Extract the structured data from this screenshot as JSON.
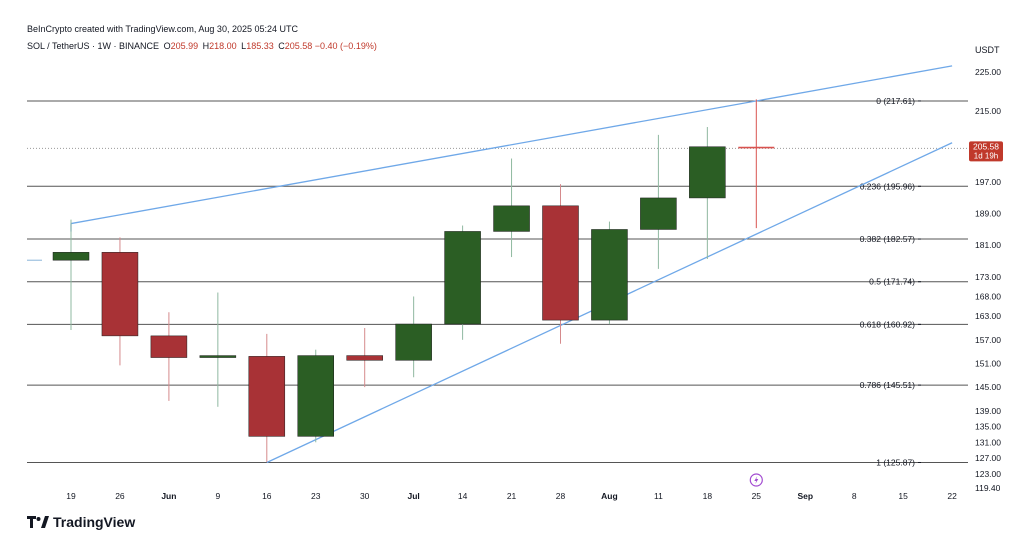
{
  "credit": "BeInCrypto created with TradingView.com, Aug 30, 2025 05:24 UTC",
  "legend": {
    "symbol": "SOL / TetherUS · 1W · BINANCE",
    "open_label": "O",
    "open": "205.99",
    "high_label": "H",
    "high": "218.00",
    "low_label": "L",
    "low": "185.33",
    "close_label": "C",
    "close": "205.58",
    "change": "−0.40 (−0.19%)"
  },
  "unit": "USDT",
  "brand": "TradingView",
  "last_price": {
    "value": "205.58",
    "countdown": "1d 19h"
  },
  "event_icon": "lightning-icon",
  "colors": {
    "up": "#2b5e24",
    "down": "#a83236",
    "trend": "#6fa8e8",
    "fib": "#555555",
    "price_tag": "#c0392b"
  },
  "chart_data": {
    "type": "candlestick",
    "x_labels": [
      "19",
      "26",
      "Jun",
      "9",
      "16",
      "23",
      "30",
      "Jul",
      "14",
      "21",
      "28",
      "Aug",
      "11",
      "18",
      "25",
      "Sep",
      "8",
      "15",
      "22"
    ],
    "y_ticks": [
      225.0,
      215.0,
      205.58,
      197.0,
      189.0,
      181.0,
      173.0,
      168.0,
      163.0,
      157.0,
      151.0,
      145.0,
      139.0,
      135.0,
      131.0,
      127.0,
      123.0,
      119.4
    ],
    "y_tick_labels": [
      "225.00",
      "215.00",
      "",
      "197.00",
      "189.00",
      "181.00",
      "173.00",
      "168.00",
      "163.00",
      "157.00",
      "151.00",
      "145.00",
      "139.00",
      "135.00",
      "131.00",
      "127.00",
      "123.00",
      "119.40"
    ],
    "candles": [
      {
        "x": "19",
        "o": 177.2,
        "h": 187.5,
        "l": 159.5,
        "c": 179.2
      },
      {
        "x": "26",
        "o": 179.2,
        "h": 183.0,
        "l": 150.5,
        "c": 158.0
      },
      {
        "x": "Jun",
        "o": 158.0,
        "h": 164.0,
        "l": 141.5,
        "c": 152.5
      },
      {
        "x": "9",
        "o": 152.5,
        "h": 169.0,
        "l": 140.0,
        "c": 153.0
      },
      {
        "x": "16",
        "o": 152.8,
        "h": 158.5,
        "l": 126.0,
        "c": 132.5
      },
      {
        "x": "23",
        "o": 132.5,
        "h": 154.5,
        "l": 131.0,
        "c": 153.0
      },
      {
        "x": "30",
        "o": 153.0,
        "h": 160.0,
        "l": 145.0,
        "c": 151.8
      },
      {
        "x": "Jul",
        "o": 151.8,
        "h": 168.0,
        "l": 147.5,
        "c": 161.0
      },
      {
        "x": "14",
        "o": 161.0,
        "h": 186.0,
        "l": 157.0,
        "c": 184.5
      },
      {
        "x": "21",
        "o": 184.5,
        "h": 203.0,
        "l": 178.0,
        "c": 191.0
      },
      {
        "x": "28",
        "o": 191.0,
        "h": 196.5,
        "l": 156.0,
        "c": 162.0
      },
      {
        "x": "Aug",
        "o": 162.0,
        "h": 187.0,
        "l": 161.0,
        "c": 185.0
      },
      {
        "x": "11",
        "o": 185.0,
        "h": 209.0,
        "l": 175.0,
        "c": 193.0
      },
      {
        "x": "18",
        "o": 193.0,
        "h": 211.0,
        "l": 177.5,
        "c": 205.99
      },
      {
        "x": "25",
        "o": 205.99,
        "h": 218.0,
        "l": 185.33,
        "c": 205.58
      }
    ],
    "fib_levels": [
      {
        "ratio": "0",
        "price": 217.61,
        "label": "0 (217.61)"
      },
      {
        "ratio": "0.236",
        "price": 195.96,
        "label": "0.236 (195.96)"
      },
      {
        "ratio": "0.382",
        "price": 182.57,
        "label": "0.382 (182.57)"
      },
      {
        "ratio": "0.5",
        "price": 171.74,
        "label": "0.5 (171.74)"
      },
      {
        "ratio": "0.618",
        "price": 160.92,
        "label": "0.618 (160.92)"
      },
      {
        "ratio": "0.786",
        "price": 145.51,
        "label": "0.786 (145.51)"
      },
      {
        "ratio": "1",
        "price": 125.87,
        "label": "1 (125.87)"
      }
    ],
    "trendlines": [
      {
        "name": "upper",
        "from": {
          "x": "19",
          "y": 186.5
        },
        "to": {
          "x": "22",
          "y": 226.5
        }
      },
      {
        "name": "lower",
        "from": {
          "x": "16",
          "y": 125.87
        },
        "to": {
          "x": "22",
          "y": 207.0
        }
      }
    ],
    "current_price": 205.58,
    "ylim": [
      119.4,
      228.0
    ]
  }
}
